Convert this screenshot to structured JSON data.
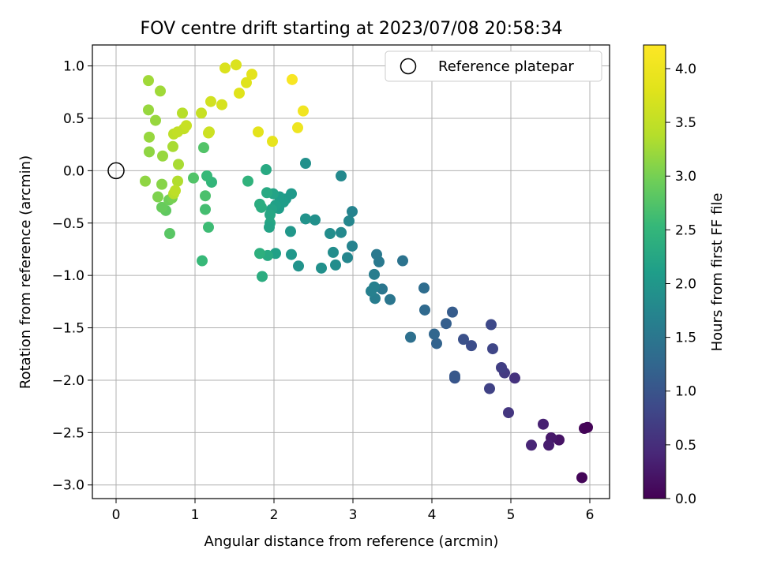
{
  "chart_data": {
    "type": "scatter",
    "title": "FOV centre drift starting at 2023/07/08 20:58:34",
    "xlabel": "Angular distance from reference (arcmin)",
    "ylabel": "Rotation from reference (arcmin)",
    "xlim": [
      -0.3,
      6.25
    ],
    "ylim": [
      -3.13,
      1.2
    ],
    "xticks": [
      0,
      1,
      2,
      3,
      4,
      5,
      6
    ],
    "xtick_labels": [
      "0",
      "1",
      "2",
      "3",
      "4",
      "5",
      "6"
    ],
    "yticks": [
      1.0,
      0.5,
      0.0,
      -0.5,
      -1.0,
      -1.5,
      -2.0,
      -2.5,
      -3.0
    ],
    "ytick_labels": [
      "1.0",
      "0.5",
      "0.0",
      "−0.5",
      "−1.0",
      "−1.5",
      "−2.0",
      "−2.5",
      "−3.0"
    ],
    "grid": true,
    "legend": {
      "entries": [
        "Reference platepar"
      ],
      "placement": "top-right"
    },
    "reference_point": {
      "x": 0,
      "y": 0,
      "label": "Reference platepar"
    },
    "colorbar": {
      "label": "Hours from first FF file",
      "range": [
        0.0,
        4.22
      ],
      "ticks": [
        0.0,
        0.5,
        1.0,
        1.5,
        2.0,
        2.5,
        3.0,
        3.5,
        4.0
      ],
      "tick_labels": [
        "0.0",
        "0.5",
        "1.0",
        "1.5",
        "2.0",
        "2.5",
        "3.0",
        "3.5",
        "4.0"
      ],
      "colormap": "viridis"
    },
    "points": [
      [
        5.9,
        -2.93,
        0.05
      ],
      [
        5.93,
        -2.46,
        0.05
      ],
      [
        5.97,
        -2.45,
        0.03
      ],
      [
        5.61,
        -2.57,
        0.2
      ],
      [
        5.51,
        -2.55,
        0.25
      ],
      [
        5.48,
        -2.62,
        0.3
      ],
      [
        5.41,
        -2.42,
        0.35
      ],
      [
        5.26,
        -2.62,
        0.4
      ],
      [
        5.05,
        -1.98,
        0.55
      ],
      [
        4.97,
        -2.31,
        0.6
      ],
      [
        4.92,
        -1.93,
        0.65
      ],
      [
        4.88,
        -1.88,
        0.7
      ],
      [
        4.73,
        -2.08,
        0.75
      ],
      [
        4.77,
        -1.7,
        0.8
      ],
      [
        4.75,
        -1.47,
        0.85
      ],
      [
        4.5,
        -1.67,
        0.9
      ],
      [
        4.4,
        -1.61,
        0.95
      ],
      [
        4.29,
        -1.98,
        1.0
      ],
      [
        4.29,
        -1.96,
        1.05
      ],
      [
        4.26,
        -1.35,
        1.1
      ],
      [
        4.18,
        -1.46,
        1.15
      ],
      [
        4.06,
        -1.65,
        1.2
      ],
      [
        4.03,
        -1.56,
        1.25
      ],
      [
        3.91,
        -1.33,
        1.3
      ],
      [
        3.9,
        -1.12,
        1.35
      ],
      [
        3.73,
        -1.59,
        1.4
      ],
      [
        3.63,
        -0.86,
        1.45
      ],
      [
        3.47,
        -1.23,
        1.5
      ],
      [
        3.37,
        -1.13,
        1.5
      ],
      [
        3.33,
        -0.87,
        1.55
      ],
      [
        3.3,
        -0.8,
        1.55
      ],
      [
        3.28,
        -1.22,
        1.6
      ],
      [
        3.27,
        -0.99,
        1.6
      ],
      [
        3.27,
        -1.11,
        1.65
      ],
      [
        3.23,
        -1.15,
        1.65
      ],
      [
        2.99,
        -0.39,
        1.7
      ],
      [
        2.99,
        -0.72,
        1.7
      ],
      [
        2.95,
        -0.48,
        1.75
      ],
      [
        2.93,
        -0.83,
        1.75
      ],
      [
        2.85,
        -0.59,
        1.8
      ],
      [
        2.85,
        -0.05,
        1.8
      ],
      [
        2.78,
        -0.9,
        1.85
      ],
      [
        2.75,
        -0.78,
        1.85
      ],
      [
        2.71,
        -0.6,
        1.85
      ],
      [
        2.6,
        -0.93,
        1.9
      ],
      [
        2.52,
        -0.47,
        1.9
      ],
      [
        2.4,
        0.07,
        1.9
      ],
      [
        2.4,
        -0.46,
        1.95
      ],
      [
        2.31,
        -0.91,
        1.95
      ],
      [
        2.22,
        -0.8,
        2.0
      ],
      [
        2.21,
        -0.58,
        2.0
      ],
      [
        2.22,
        -0.22,
        2.05
      ],
      [
        2.15,
        -0.27,
        2.05
      ],
      [
        2.12,
        -0.3,
        2.1
      ],
      [
        2.07,
        -0.25,
        2.1
      ],
      [
        2.06,
        -0.36,
        2.1
      ],
      [
        2.02,
        -0.33,
        2.15
      ],
      [
        2.02,
        -0.79,
        2.15
      ],
      [
        1.99,
        -0.22,
        2.2
      ],
      [
        1.97,
        -0.37,
        2.2
      ],
      [
        1.95,
        -0.42,
        2.25
      ],
      [
        1.95,
        -0.5,
        2.25
      ],
      [
        1.94,
        -0.54,
        2.2
      ],
      [
        1.92,
        -0.81,
        2.3
      ],
      [
        1.91,
        -0.21,
        2.3
      ],
      [
        1.9,
        0.01,
        2.3
      ],
      [
        1.85,
        -1.01,
        2.35
      ],
      [
        1.84,
        -0.35,
        2.35
      ],
      [
        1.82,
        -0.32,
        2.35
      ],
      [
        1.82,
        -0.79,
        2.4
      ],
      [
        1.67,
        -0.1,
        2.45
      ],
      [
        1.21,
        -0.11,
        2.5
      ],
      [
        1.15,
        -0.05,
        2.55
      ],
      [
        1.09,
        -0.86,
        2.55
      ],
      [
        1.17,
        -0.54,
        2.6
      ],
      [
        1.13,
        -0.37,
        2.65
      ],
      [
        1.13,
        -0.24,
        2.7
      ],
      [
        1.11,
        0.22,
        2.75
      ],
      [
        0.98,
        -0.07,
        2.75
      ],
      [
        0.68,
        -0.6,
        2.8
      ],
      [
        0.63,
        -0.38,
        2.85
      ],
      [
        0.58,
        -0.35,
        2.9
      ],
      [
        0.67,
        -0.28,
        2.95
      ],
      [
        0.71,
        -0.26,
        3.0
      ],
      [
        0.53,
        -0.25,
        3.05
      ],
      [
        0.58,
        -0.13,
        3.1
      ],
      [
        0.37,
        -0.1,
        3.15
      ],
      [
        0.42,
        0.18,
        3.15
      ],
      [
        0.59,
        0.14,
        3.2
      ],
      [
        0.42,
        0.32,
        3.2
      ],
      [
        0.5,
        0.48,
        3.2
      ],
      [
        0.41,
        0.58,
        3.2
      ],
      [
        0.41,
        0.86,
        3.25
      ],
      [
        0.56,
        0.76,
        3.25
      ],
      [
        0.72,
        0.23,
        3.3
      ],
      [
        0.79,
        0.06,
        3.3
      ],
      [
        0.78,
        -0.1,
        3.35
      ],
      [
        0.73,
        -0.22,
        3.4
      ],
      [
        0.75,
        -0.19,
        3.45
      ],
      [
        0.73,
        0.35,
        3.45
      ],
      [
        0.78,
        0.37,
        3.5
      ],
      [
        0.86,
        0.4,
        3.5
      ],
      [
        0.89,
        0.43,
        3.55
      ],
      [
        0.84,
        0.55,
        3.4
      ],
      [
        1.08,
        0.55,
        3.55
      ],
      [
        1.17,
        0.36,
        3.6
      ],
      [
        1.18,
        0.37,
        3.6
      ],
      [
        1.2,
        0.66,
        3.65
      ],
      [
        1.34,
        0.63,
        3.7
      ],
      [
        1.38,
        0.98,
        3.75
      ],
      [
        1.52,
        1.01,
        3.75
      ],
      [
        1.56,
        0.74,
        3.8
      ],
      [
        1.65,
        0.84,
        3.8
      ],
      [
        1.72,
        0.92,
        3.85
      ],
      [
        1.8,
        0.37,
        3.85
      ],
      [
        1.98,
        0.28,
        3.9
      ],
      [
        2.3,
        0.41,
        4.0
      ],
      [
        2.37,
        0.57,
        4.05
      ],
      [
        2.23,
        0.87,
        4.15
      ]
    ]
  }
}
